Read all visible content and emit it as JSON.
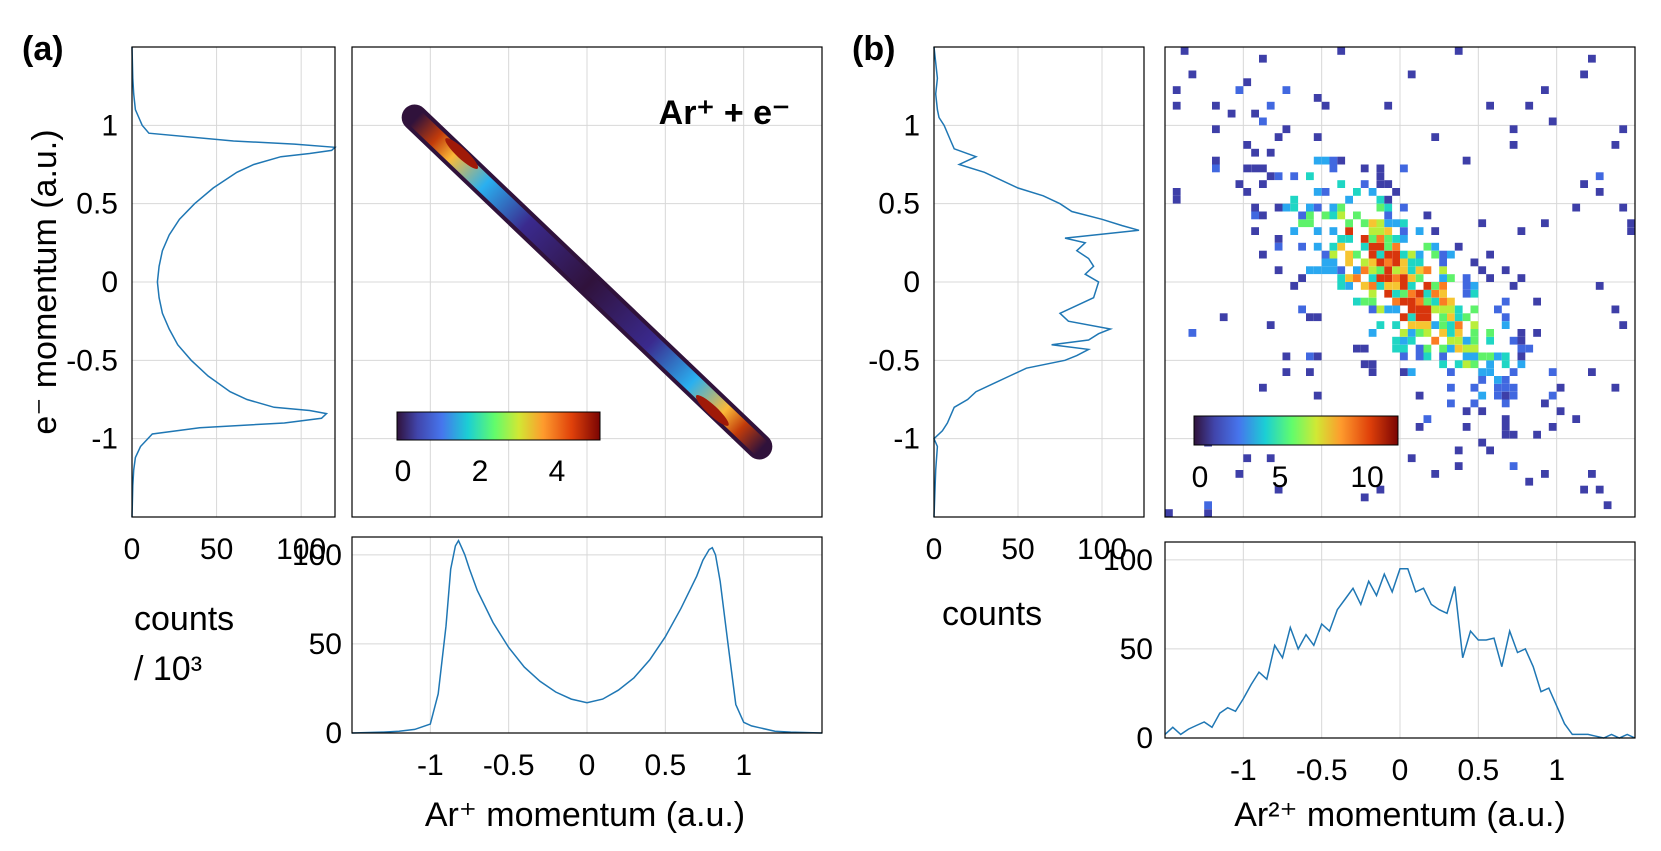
{
  "panels": {
    "a": {
      "label": "(a)",
      "annotation": "Ar⁺ + e⁻",
      "ylabel": "e⁻ momentum (a.u.)",
      "xlabel": "Ar⁺ momentum (a.u.)",
      "counts_label": "counts",
      "counts_unit": "/ 10³",
      "colorbar_ticks": [
        "0",
        "2",
        "4"
      ]
    },
    "b": {
      "label": "(b)",
      "ylabel": "",
      "xlabel": "Ar²⁺ momentum (a.u.)",
      "counts_label": "counts",
      "colorbar_ticks": [
        "0",
        "5",
        "10"
      ]
    }
  },
  "chart_data": [
    {
      "panel": "a-left",
      "type": "line",
      "orientation": "vertical",
      "ylabel": "e⁻ momentum (a.u.)",
      "xlabel": "counts / 10³",
      "xlim": [
        0,
        120
      ],
      "ylim": [
        -1.5,
        1.5
      ],
      "xticks": [
        "0",
        "50",
        "100"
      ],
      "yticks": [
        "1",
        "0.5",
        "0",
        "-0.5",
        "-1"
      ],
      "y": [
        -1.5,
        -1.3,
        -1.2,
        -1.12,
        -1.05,
        -0.97,
        -0.93,
        -0.9,
        -0.87,
        -0.84,
        -0.82,
        -0.8,
        -0.75,
        -0.7,
        -0.6,
        -0.5,
        -0.4,
        -0.3,
        -0.2,
        -0.1,
        0,
        0.1,
        0.2,
        0.3,
        0.4,
        0.5,
        0.6,
        0.7,
        0.75,
        0.8,
        0.82,
        0.84,
        0.86,
        0.88,
        0.9,
        0.95,
        1.0,
        1.05,
        1.1,
        1.2,
        1.3,
        1.5
      ],
      "x": [
        0,
        0.5,
        1,
        2,
        5,
        12,
        40,
        90,
        112,
        115,
        105,
        84,
        68,
        58,
        45,
        35,
        27,
        22,
        18,
        16,
        15,
        16,
        18,
        22,
        28,
        37,
        48,
        62,
        72,
        88,
        105,
        118,
        120,
        96,
        60,
        10,
        6,
        4,
        2,
        1,
        0.5,
        0
      ]
    },
    {
      "panel": "a-main",
      "type": "heatmap",
      "xlim": [
        -1.5,
        1.5
      ],
      "ylim": [
        -1.5,
        1.5
      ],
      "annotation": "Ar⁺ + e⁻",
      "colorbar_range": [
        0,
        5.3
      ],
      "colorbar_ticks": [
        "0",
        "2",
        "4"
      ],
      "band": {
        "from": [
          -1.1,
          1.05
        ],
        "to": [
          1.1,
          -1.05
        ]
      },
      "peaks": [
        {
          "x": -0.8,
          "y": 0.82,
          "value": 5.3
        },
        {
          "x": 0.8,
          "y": -0.82,
          "value": 5.3
        }
      ]
    },
    {
      "panel": "a-bottom",
      "type": "line",
      "xlabel": "Ar⁺ momentum (a.u.)",
      "xlim": [
        -1.5,
        1.5
      ],
      "ylim": [
        0,
        110
      ],
      "xticks": [
        "-1",
        "-0.5",
        "0",
        "0.5",
        "1"
      ],
      "yticks": [
        "0",
        "50",
        "100"
      ],
      "x": [
        -1.5,
        -1.3,
        -1.2,
        -1.1,
        -1.0,
        -0.95,
        -0.9,
        -0.87,
        -0.84,
        -0.82,
        -0.8,
        -0.78,
        -0.75,
        -0.7,
        -0.6,
        -0.5,
        -0.4,
        -0.3,
        -0.2,
        -0.1,
        0,
        0.1,
        0.2,
        0.3,
        0.4,
        0.5,
        0.6,
        0.7,
        0.74,
        0.78,
        0.8,
        0.82,
        0.85,
        0.9,
        0.95,
        1.0,
        1.05,
        1.1,
        1.2,
        1.3,
        1.5
      ],
      "y": [
        0,
        0.5,
        1,
        2,
        5,
        22,
        60,
        92,
        105,
        108,
        104,
        100,
        92,
        80,
        62,
        48,
        37,
        29,
        23,
        19,
        17,
        19,
        24,
        31,
        41,
        54,
        70,
        88,
        97,
        103,
        104,
        100,
        85,
        50,
        16,
        6,
        4,
        3,
        1,
        0.5,
        0
      ]
    },
    {
      "panel": "b-left",
      "type": "line",
      "orientation": "vertical",
      "xlabel": "counts",
      "xlim": [
        0,
        125
      ],
      "ylim": [
        -1.5,
        1.5
      ],
      "xticks": [
        "0",
        "50",
        "100"
      ],
      "yticks": [
        "1",
        "0.5",
        "0",
        "-0.5",
        "-1"
      ],
      "y": [
        -1.5,
        -1.2,
        -1.05,
        -1.0,
        -0.95,
        -0.9,
        -0.8,
        -0.75,
        -0.7,
        -0.6,
        -0.55,
        -0.5,
        -0.47,
        -0.43,
        -0.4,
        -0.37,
        -0.33,
        -0.3,
        -0.25,
        -0.2,
        -0.1,
        0,
        0.05,
        0.1,
        0.15,
        0.2,
        0.25,
        0.28,
        0.33,
        0.36,
        0.4,
        0.45,
        0.5,
        0.55,
        0.6,
        0.7,
        0.75,
        0.8,
        0.85,
        0.9,
        1.0,
        1.05,
        1.1,
        1.2,
        1.3,
        1.5
      ],
      "x": [
        0,
        1,
        2,
        0,
        5,
        8,
        12,
        20,
        25,
        45,
        55,
        78,
        85,
        92,
        70,
        92,
        98,
        105,
        80,
        75,
        95,
        98,
        90,
        95,
        92,
        85,
        90,
        78,
        122,
        112,
        100,
        82,
        75,
        65,
        50,
        30,
        15,
        25,
        12,
        10,
        6,
        3,
        2,
        1,
        2,
        0
      ]
    },
    {
      "panel": "b-main",
      "type": "heatmap",
      "xlim": [
        -1.5,
        1.5
      ],
      "ylim": [
        -1.5,
        1.5
      ],
      "colorbar_range": [
        0,
        12.5
      ],
      "colorbar_ticks": [
        "0",
        "5",
        "10"
      ],
      "center": {
        "x": 0.0,
        "y": 0.0
      },
      "trend": "anti-correlated, from (-0.8, 0.45) to (0.9, -0.45)"
    },
    {
      "panel": "b-bottom",
      "type": "line",
      "xlabel": "Ar²⁺ momentum (a.u.)",
      "xlim": [
        -1.5,
        1.5
      ],
      "ylim": [
        0,
        110
      ],
      "xticks": [
        "-1",
        "-0.5",
        "0",
        "0.5",
        "1"
      ],
      "yticks": [
        "0",
        "50",
        "100"
      ],
      "x": [
        -1.5,
        -1.45,
        -1.4,
        -1.35,
        -1.3,
        -1.25,
        -1.2,
        -1.15,
        -1.1,
        -1.05,
        -1.0,
        -0.95,
        -0.9,
        -0.85,
        -0.8,
        -0.75,
        -0.7,
        -0.65,
        -0.6,
        -0.55,
        -0.5,
        -0.45,
        -0.4,
        -0.35,
        -0.3,
        -0.25,
        -0.2,
        -0.15,
        -0.1,
        -0.05,
        0,
        0.05,
        0.1,
        0.15,
        0.2,
        0.25,
        0.3,
        0.35,
        0.4,
        0.45,
        0.5,
        0.55,
        0.6,
        0.65,
        0.7,
        0.75,
        0.8,
        0.85,
        0.9,
        0.95,
        1.0,
        1.05,
        1.1,
        1.15,
        1.2,
        1.25,
        1.3,
        1.35,
        1.4,
        1.45,
        1.5
      ],
      "y": [
        2,
        6,
        2,
        5,
        7,
        9,
        6,
        14,
        17,
        15,
        22,
        30,
        37,
        33,
        52,
        45,
        62,
        50,
        58,
        52,
        64,
        60,
        72,
        78,
        84,
        75,
        88,
        80,
        92,
        82,
        95,
        95,
        82,
        84,
        75,
        72,
        70,
        85,
        45,
        60,
        55,
        55,
        56,
        40,
        60,
        48,
        50,
        40,
        26,
        28,
        18,
        8,
        2,
        2,
        2,
        1,
        0,
        2,
        0,
        2,
        0
      ]
    }
  ]
}
